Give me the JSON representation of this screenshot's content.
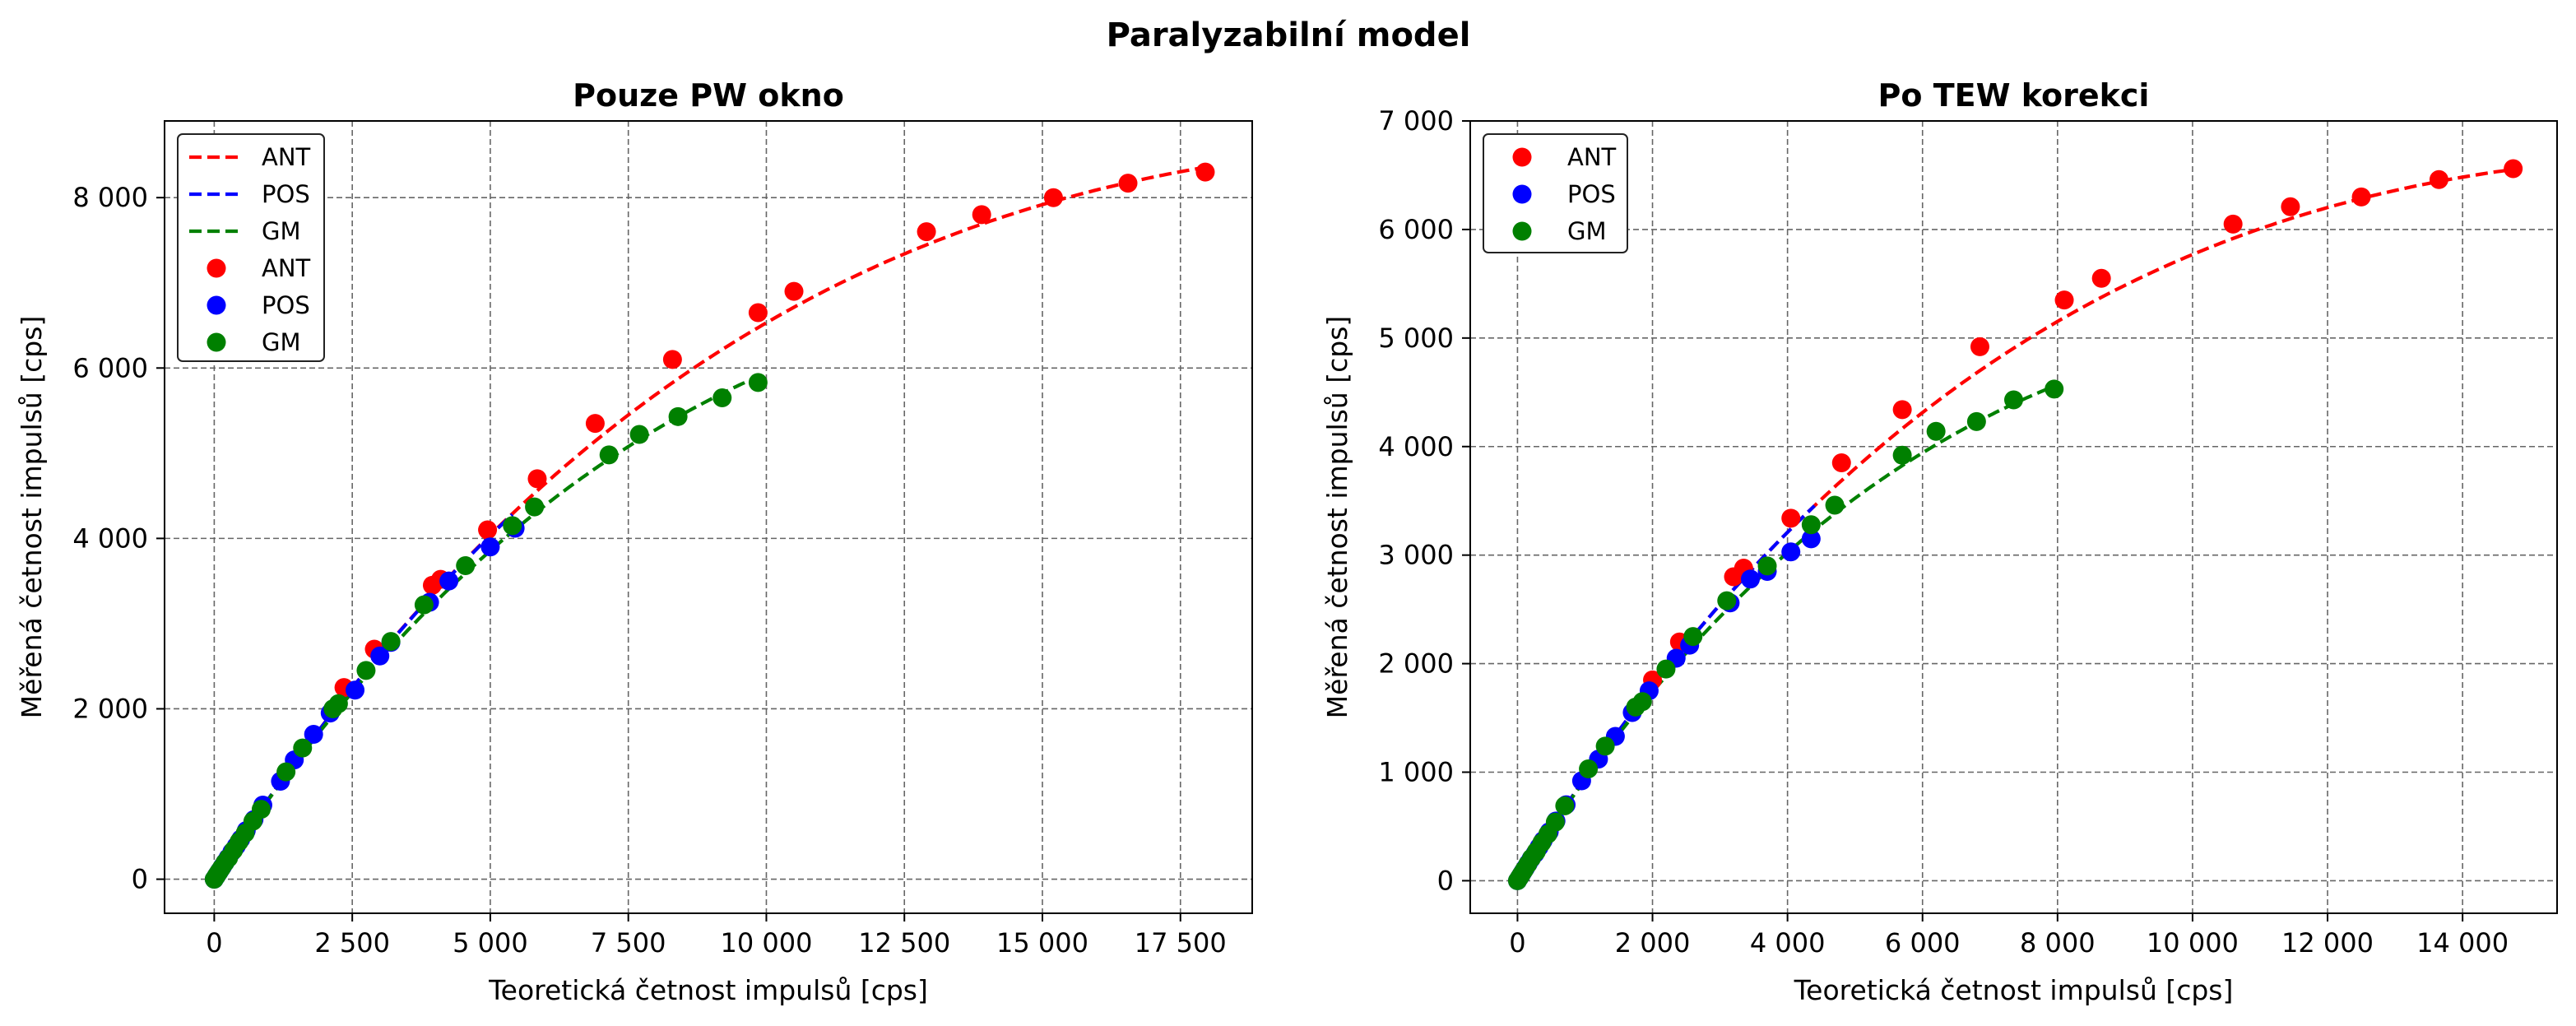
{
  "figure": {
    "title": "Paralyzabilní model"
  },
  "colors": {
    "ANT": "#ff0000",
    "POS": "#0000ff",
    "GM": "#008000"
  },
  "chart_data": [
    {
      "type": "scatter",
      "title": "Pouze PW okno",
      "xlabel": "Teoretická četnost impulsů [cps]",
      "ylabel": "Měřená četnost impulsů [cps]",
      "xlim": [
        -900,
        18800
      ],
      "ylim": [
        -400,
        8900
      ],
      "xticks": [
        0,
        2500,
        5000,
        7500,
        10000,
        12500,
        15000,
        17500
      ],
      "xtick_labels": [
        "0",
        "2 500",
        "5 000",
        "7 500",
        "10 000",
        "12 500",
        "15 000",
        "17 500"
      ],
      "yticks": [
        0,
        2000,
        4000,
        6000,
        8000
      ],
      "ytick_labels": [
        "0",
        "2 000",
        "4 000",
        "6 000",
        "8 000"
      ],
      "grid": true,
      "legend_position": "top-left",
      "legend": [
        "ANT",
        "POS",
        "GM",
        "ANT",
        "POS",
        "GM"
      ],
      "series": [
        {
          "name": "ANT",
          "kind": "fit",
          "color": "#ff0000",
          "tau": 4.26e-05,
          "x_range": [
            0,
            17900
          ]
        },
        {
          "name": "POS",
          "kind": "fit",
          "color": "#0000ff",
          "tau": 4.3e-05,
          "x_range": [
            0,
            5400
          ]
        },
        {
          "name": "GM",
          "kind": "fit",
          "color": "#008000",
          "tau": 5.2e-05,
          "x_range": [
            0,
            9900
          ]
        },
        {
          "name": "ANT",
          "kind": "points",
          "color": "#ff0000",
          "x": [
            2350,
            2900,
            3950,
            4100,
            4950,
            5850,
            6900,
            8300,
            9850,
            10500,
            12900,
            13900,
            15200,
            16550,
            17950
          ],
          "y": [
            2250,
            2700,
            3450,
            3520,
            4100,
            4700,
            5350,
            6100,
            6650,
            6900,
            7600,
            7800,
            8000,
            8170,
            8300
          ]
        },
        {
          "name": "POS",
          "kind": "points",
          "color": "#0000ff",
          "x": [
            0,
            30,
            60,
            100,
            150,
            200,
            250,
            320,
            400,
            480,
            580,
            720,
            880,
            1200,
            1450,
            1800,
            2100,
            2550,
            3000,
            3200,
            3900,
            4250,
            5000,
            5450
          ],
          "y": [
            0,
            30,
            60,
            100,
            150,
            200,
            250,
            320,
            390,
            470,
            570,
            700,
            870,
            1150,
            1400,
            1700,
            1950,
            2220,
            2620,
            2780,
            3250,
            3500,
            3900,
            4120
          ]
        },
        {
          "name": "GM",
          "kind": "points",
          "color": "#008000",
          "x": [
            0,
            40,
            80,
            130,
            190,
            260,
            350,
            450,
            560,
            700,
            850,
            1300,
            1600,
            2150,
            2250,
            2750,
            3200,
            3800,
            4550,
            5400,
            5800,
            7150,
            7700,
            8400,
            9200,
            9850
          ],
          "y": [
            0,
            40,
            80,
            130,
            190,
            250,
            340,
            440,
            540,
            680,
            820,
            1260,
            1540,
            2000,
            2060,
            2450,
            2790,
            3220,
            3680,
            4150,
            4370,
            4980,
            5220,
            5430,
            5650,
            5830
          ]
        }
      ]
    },
    {
      "type": "scatter",
      "title": "Po TEW korekci",
      "xlabel": "Teoretická četnost impulsů [cps]",
      "ylabel": "Měřená četnost impulsů [cps]",
      "xlim": [
        -700,
        15400
      ],
      "ylim": [
        -300,
        7000
      ],
      "xticks": [
        0,
        2000,
        4000,
        6000,
        8000,
        10000,
        12000,
        14000
      ],
      "xtick_labels": [
        "0",
        "2 000",
        "4 000",
        "6 000",
        "8 000",
        "10 000",
        "12 000",
        "14 000"
      ],
      "yticks": [
        0,
        1000,
        2000,
        3000,
        4000,
        5000,
        6000,
        7000
      ],
      "ytick_labels": [
        "0",
        "1 000",
        "2 000",
        "3 000",
        "4 000",
        "5 000",
        "6 000",
        "7 000"
      ],
      "grid": true,
      "legend_position": "top-left",
      "legend": [
        "ANT",
        "POS",
        "GM"
      ],
      "series": [
        {
          "name": "ANT",
          "kind": "fit",
          "color": "#ff0000",
          "tau": 5.5e-05,
          "x_range": [
            0,
            14800
          ]
        },
        {
          "name": "POS",
          "kind": "fit",
          "color": "#0000ff",
          "tau": 5.5e-05,
          "x_range": [
            0,
            4400
          ]
        },
        {
          "name": "GM",
          "kind": "fit",
          "color": "#008000",
          "tau": 7e-05,
          "x_range": [
            0,
            8000
          ]
        },
        {
          "name": "ANT",
          "kind": "points",
          "color": "#ff0000",
          "x": [
            2000,
            2400,
            3200,
            3350,
            4050,
            4800,
            5700,
            6850,
            8100,
            8650,
            10600,
            11450,
            12500,
            13650,
            14750
          ],
          "y": [
            1850,
            2200,
            2800,
            2880,
            3340,
            3850,
            4340,
            4920,
            5350,
            5550,
            6050,
            6210,
            6300,
            6460,
            6560
          ]
        },
        {
          "name": "POS",
          "kind": "points",
          "color": "#0000ff",
          "x": [
            0,
            25,
            50,
            80,
            120,
            160,
            200,
            260,
            320,
            380,
            470,
            570,
            720,
            950,
            1200,
            1450,
            1700,
            1950,
            2350,
            2550,
            3150,
            3450,
            3700,
            4050,
            4350
          ],
          "y": [
            0,
            25,
            50,
            80,
            120,
            160,
            200,
            250,
            310,
            370,
            450,
            550,
            700,
            920,
            1120,
            1330,
            1550,
            1750,
            2050,
            2170,
            2560,
            2780,
            2850,
            3030,
            3150
          ]
        },
        {
          "name": "GM",
          "kind": "points",
          "color": "#008000",
          "x": [
            0,
            30,
            60,
            100,
            150,
            210,
            280,
            360,
            450,
            560,
            700,
            1050,
            1300,
            1750,
            1850,
            2200,
            2600,
            3100,
            3700,
            4350,
            4700,
            5700,
            6200,
            6800,
            7350,
            7950
          ],
          "y": [
            0,
            30,
            60,
            100,
            150,
            210,
            270,
            350,
            430,
            540,
            690,
            1030,
            1240,
            1600,
            1650,
            1950,
            2250,
            2580,
            2900,
            3280,
            3460,
            3920,
            4140,
            4230,
            4430,
            4530
          ]
        }
      ]
    }
  ]
}
